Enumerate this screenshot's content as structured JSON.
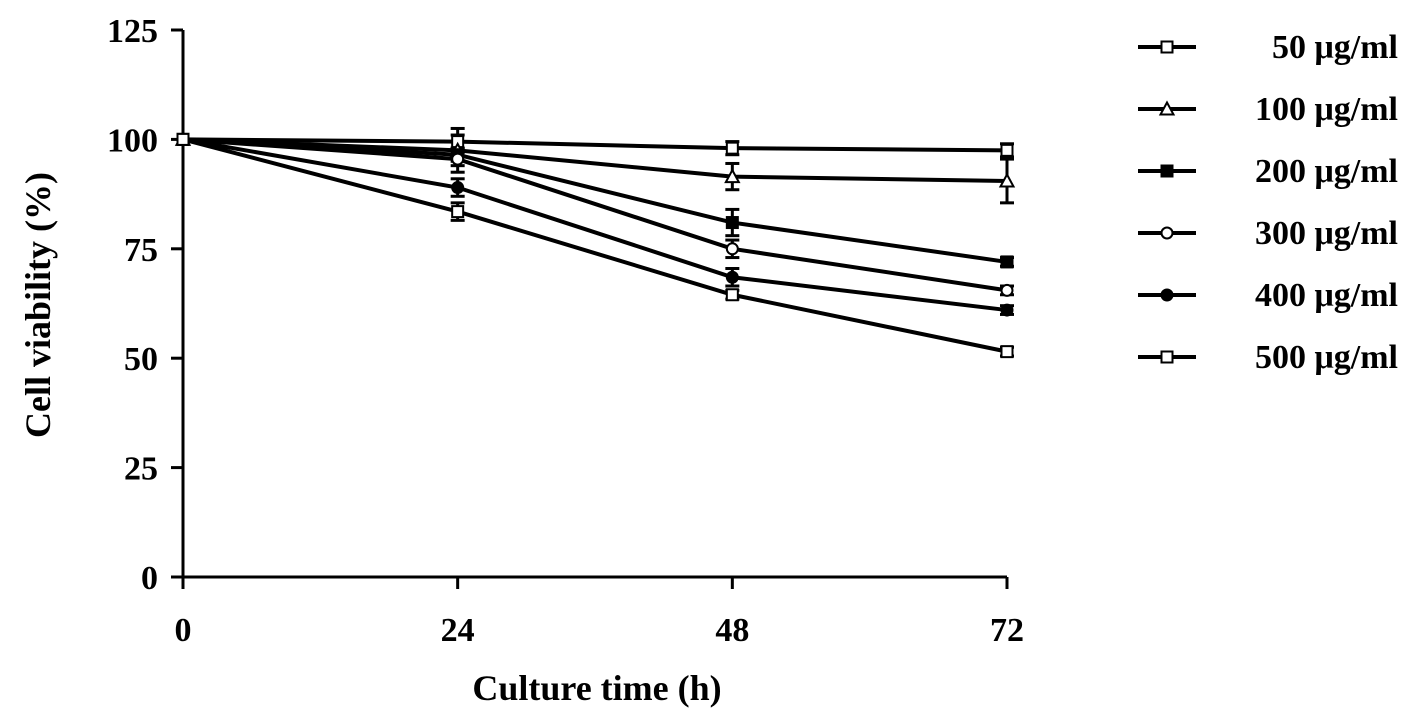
{
  "chart_data": {
    "type": "line",
    "xlabel": "Culture time (h)",
    "ylabel": "Cell viability (%)",
    "x": [
      0,
      24,
      48,
      72
    ],
    "xlim": [
      0,
      72
    ],
    "ylim": [
      0,
      125
    ],
    "xticks": [
      "0",
      "24",
      "48",
      "72"
    ],
    "yticks": [
      "0",
      "25",
      "50",
      "75",
      "100",
      "125"
    ],
    "grid": false,
    "legend_position": "right",
    "series": [
      {
        "name": "50 μg/ml",
        "marker": "square-open",
        "values": [
          100,
          99.5,
          98,
          97.5
        ],
        "errors": [
          0,
          1.5,
          1.5,
          1.5
        ]
      },
      {
        "name": "100 μg/ml",
        "marker": "triangle-open",
        "values": [
          100,
          97.5,
          91.5,
          90.5
        ],
        "errors": [
          0,
          5,
          3,
          5
        ]
      },
      {
        "name": "200 μg/ml",
        "marker": "square-filled",
        "values": [
          100,
          96.5,
          81,
          72
        ],
        "errors": [
          0,
          1.5,
          3,
          1
        ]
      },
      {
        "name": "300 μg/ml",
        "marker": "circle-open",
        "values": [
          100,
          95.5,
          75,
          65.5
        ],
        "errors": [
          0,
          1.5,
          2,
          1
        ]
      },
      {
        "name": "400 μg/ml",
        "marker": "circle-filled",
        "values": [
          100,
          89,
          68.5,
          61
        ],
        "errors": [
          0,
          2,
          2,
          1
        ]
      },
      {
        "name": "500 μg/ml",
        "marker": "square-open",
        "values": [
          100,
          83.5,
          64.5,
          51.5
        ],
        "errors": [
          0,
          2,
          1,
          1
        ]
      }
    ]
  }
}
